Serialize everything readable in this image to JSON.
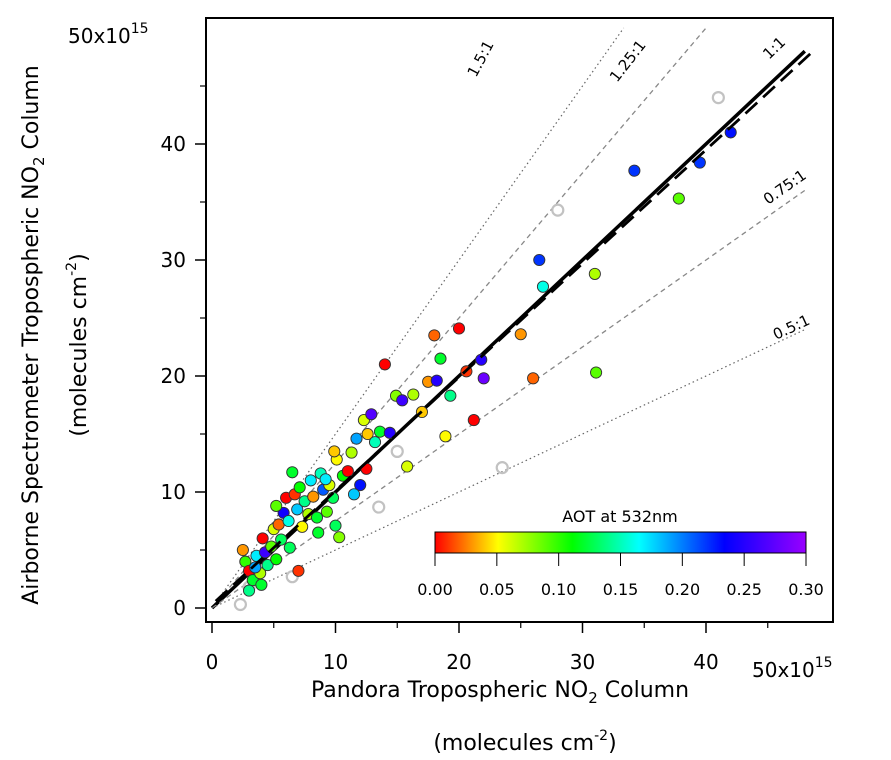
{
  "chart_data": {
    "type": "scatter",
    "xlabel": {
      "main": "Pandora Tropospheric NO",
      "sub": "2",
      "tail": " Column",
      "units_pre": "(molecules cm",
      "units_sup": "-2",
      "units_post": ")"
    },
    "ylabel": {
      "main": "Airborne Spectrometer Tropospheric NO",
      "sub": "2",
      "tail": " Column",
      "units_pre": "(molecules cm",
      "units_sup": "-2",
      "units_post": ")"
    },
    "xlim": [
      0,
      50
    ],
    "ylim": [
      0,
      50
    ],
    "x_ticks": [
      "0",
      "10",
      "20",
      "30",
      "40"
    ],
    "y_ticks": [
      "0",
      "10",
      "20",
      "30",
      "40"
    ],
    "axis_multiplier": {
      "base": "50x10",
      "exp": "15"
    },
    "reference_lines": [
      {
        "label": "1.5:1",
        "slope": 1.5,
        "style": "dotted"
      },
      {
        "label": "1.25:1",
        "slope": 1.25,
        "style": "dashed"
      },
      {
        "label": "1:1",
        "slope": 1.0,
        "style": "solid-thick"
      },
      {
        "label": "0.75:1",
        "slope": 0.75,
        "style": "dashed"
      },
      {
        "label": "0.5:1",
        "slope": 0.5,
        "style": "dotted"
      }
    ],
    "fit_line": {
      "slope": 0.98,
      "intercept": 0.3,
      "style": "dashed-thick"
    },
    "colorbar": {
      "title": "AOT at 532nm",
      "min": 0.0,
      "max": 0.3,
      "ticks": [
        "0.00",
        "0.05",
        "0.10",
        "0.15",
        "0.20",
        "0.25",
        "0.30"
      ]
    },
    "points": [
      [
        2.5,
        5.0,
        0.03
      ],
      [
        2.7,
        4.0,
        0.1
      ],
      [
        3.0,
        3.2,
        0.0
      ],
      [
        3.3,
        2.4,
        0.12
      ],
      [
        3.6,
        4.5,
        0.17
      ],
      [
        3.9,
        3.0,
        0.07
      ],
      [
        4.1,
        6.0,
        0.0
      ],
      [
        4.3,
        4.8,
        0.26
      ],
      [
        4.5,
        3.7,
        0.14
      ],
      [
        4.8,
        5.3,
        0.09
      ],
      [
        5.0,
        6.8,
        0.06
      ],
      [
        5.2,
        4.2,
        0.11
      ],
      [
        5.4,
        7.2,
        0.02
      ],
      [
        5.6,
        5.9,
        0.13
      ],
      [
        5.8,
        8.2,
        0.24
      ],
      [
        6.0,
        9.5,
        0.0
      ],
      [
        6.2,
        7.5,
        0.16
      ],
      [
        6.5,
        11.7,
        0.12
      ],
      [
        6.7,
        9.8,
        0.01
      ],
      [
        6.9,
        8.5,
        0.18
      ],
      [
        7.1,
        10.4,
        0.11
      ],
      [
        7.3,
        7.0,
        0.05
      ],
      [
        7.5,
        9.2,
        0.14
      ],
      [
        7.8,
        8.1,
        0.07
      ],
      [
        8.0,
        11.0,
        0.17
      ],
      [
        8.2,
        9.6,
        0.03
      ],
      [
        8.5,
        7.8,
        0.12
      ],
      [
        8.8,
        11.6,
        0.15
      ],
      [
        9.0,
        10.2,
        0.21
      ],
      [
        9.3,
        8.3,
        0.09
      ],
      [
        9.5,
        10.6,
        0.06
      ],
      [
        9.8,
        9.5,
        0.13
      ],
      [
        10.1,
        12.8,
        0.05
      ],
      [
        10.3,
        6.1,
        0.08
      ],
      [
        10.6,
        11.4,
        0.11
      ],
      [
        11.0,
        11.8,
        0.0
      ],
      [
        11.3,
        13.4,
        0.07
      ],
      [
        11.7,
        14.6,
        0.19
      ],
      [
        12.0,
        10.6,
        0.23
      ],
      [
        12.3,
        16.2,
        0.06
      ],
      [
        12.6,
        15.0,
        0.04
      ],
      [
        12.9,
        16.7,
        0.27
      ],
      [
        13.2,
        14.3,
        0.15
      ],
      [
        13.6,
        15.2,
        0.12
      ],
      [
        14.0,
        21.0,
        0.0
      ],
      [
        14.4,
        15.1,
        0.25
      ],
      [
        14.9,
        18.3,
        0.08
      ],
      [
        15.4,
        17.9,
        0.26
      ],
      [
        15.8,
        12.2,
        0.06
      ],
      [
        16.3,
        18.4,
        0.07
      ],
      [
        17.0,
        16.9,
        0.04
      ],
      [
        17.5,
        19.5,
        0.03
      ],
      [
        18.0,
        23.5,
        0.02
      ],
      [
        18.2,
        19.6,
        0.25
      ],
      [
        18.5,
        21.5,
        0.12
      ],
      [
        18.9,
        14.8,
        0.05
      ],
      [
        19.3,
        18.3,
        0.14
      ],
      [
        20.0,
        24.1,
        0.0
      ],
      [
        20.6,
        20.4,
        0.01
      ],
      [
        21.2,
        16.2,
        0.0
      ],
      [
        21.8,
        21.4,
        0.25
      ],
      [
        22.0,
        19.8,
        0.28
      ],
      [
        25.0,
        23.6,
        0.03
      ],
      [
        26.0,
        19.8,
        0.02
      ],
      [
        26.5,
        30.0,
        0.22
      ],
      [
        26.8,
        27.7,
        0.16
      ],
      [
        31.0,
        28.8,
        0.07
      ],
      [
        31.1,
        20.3,
        0.09
      ],
      [
        34.2,
        37.7,
        0.22
      ],
      [
        37.8,
        35.3,
        0.09
      ],
      [
        39.5,
        38.4,
        0.22
      ],
      [
        42.0,
        41.0,
        0.23
      ],
      [
        7.0,
        3.2,
        0.01
      ],
      [
        4.0,
        2.0,
        0.12
      ],
      [
        5.2,
        8.8,
        0.09
      ],
      [
        9.2,
        11.1,
        0.17
      ],
      [
        11.5,
        9.8,
        0.18
      ],
      [
        6.3,
        5.2,
        0.13
      ],
      [
        3.5,
        3.5,
        0.19
      ],
      [
        10.0,
        7.1,
        0.13
      ],
      [
        8.6,
        6.5,
        0.12
      ],
      [
        12.5,
        12.0,
        0.0
      ],
      [
        9.9,
        13.5,
        0.04
      ],
      [
        3.0,
        1.5,
        0.14
      ]
    ],
    "excluded_points": [
      [
        2.3,
        0.3
      ],
      [
        3.0,
        1.8
      ],
      [
        6.5,
        2.7
      ],
      [
        13.5,
        8.7
      ],
      [
        15.0,
        13.5
      ],
      [
        23.5,
        12.1
      ],
      [
        28.0,
        34.3
      ],
      [
        41.0,
        44.0
      ]
    ]
  }
}
